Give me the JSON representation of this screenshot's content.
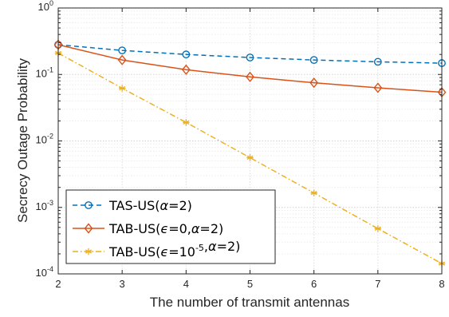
{
  "chart_data": {
    "type": "line",
    "title": "",
    "xlabel": "The number of transmit antennas",
    "ylabel": "Secrecy Outage Probability",
    "xlim": [
      2,
      8
    ],
    "ylim": [
      0.0001,
      1
    ],
    "yscale": "log",
    "grid": true,
    "legend_position": "bottom-left",
    "x": [
      2,
      3,
      4,
      5,
      6,
      7,
      8
    ],
    "x_tick_labels": [
      "2",
      "3",
      "4",
      "5",
      "6",
      "7",
      "8"
    ],
    "y_ticks": [
      {
        "value": 0.0001,
        "base": "10",
        "exp": "-4"
      },
      {
        "value": 0.001,
        "base": "10",
        "exp": "-3"
      },
      {
        "value": 0.01,
        "base": "10",
        "exp": "-2"
      },
      {
        "value": 0.1,
        "base": "10",
        "exp": "-1"
      },
      {
        "value": 1,
        "base": "10",
        "exp": "0"
      }
    ],
    "series": [
      {
        "legend": {
          "prefix": "TAS-US(",
          "parts": [
            {
              "t": "α",
              "s": "italic"
            },
            {
              "t": "=2)"
            }
          ]
        },
        "color": "#0072BD",
        "dash": "dashed",
        "marker": "circle",
        "values": [
          0.28,
          0.23,
          0.2,
          0.18,
          0.165,
          0.155,
          0.148
        ]
      },
      {
        "legend": {
          "prefix": "TAB-US(",
          "parts": [
            {
              "t": "ϵ",
              "s": "italic"
            },
            {
              "t": "=0,"
            },
            {
              "t": "α",
              "s": "italic"
            },
            {
              "t": "=2)"
            }
          ]
        },
        "color": "#D95319",
        "dash": "solid",
        "marker": "diamond",
        "values": [
          0.28,
          0.165,
          0.118,
          0.092,
          0.075,
          0.063,
          0.054
        ]
      },
      {
        "legend": {
          "prefix": "TAB-US(",
          "parts": [
            {
              "t": "ϵ",
              "s": "italic"
            },
            {
              "t": "=10"
            },
            {
              "t": "-5",
              "s": "sup"
            },
            {
              "t": ","
            },
            {
              "t": "α",
              "s": "italic"
            },
            {
              "t": "=2)"
            }
          ]
        },
        "color": "#EDB120",
        "dash": "dashdot",
        "marker": "star",
        "values": [
          0.21,
          0.062,
          0.019,
          0.0056,
          0.00165,
          0.00048,
          0.000143
        ]
      }
    ]
  }
}
